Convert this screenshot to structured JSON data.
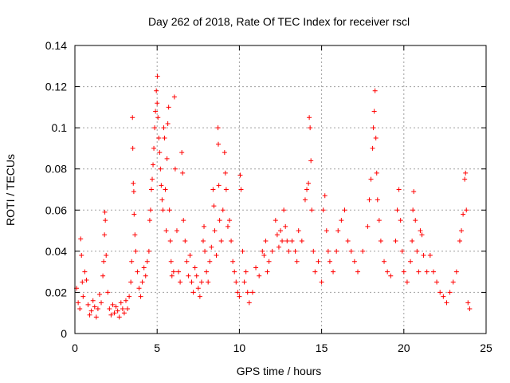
{
  "chart_data": {
    "type": "scatter",
    "title": "Day 262 of 2018, Rate Of TEC Index for receiver rscl",
    "xlabel": "GPS time / hours",
    "ylabel": "ROTI / TECUs",
    "xlim": [
      0,
      25
    ],
    "ylim": [
      0,
      0.14
    ],
    "xticks": [
      0,
      5,
      10,
      15,
      20,
      25
    ],
    "yticks": [
      0,
      0.02,
      0.04,
      0.06,
      0.08,
      0.1,
      0.12,
      0.14
    ],
    "xtick_labels": [
      "0",
      "5",
      "10",
      "15",
      "20",
      "25"
    ],
    "ytick_labels": [
      "0",
      "0.02",
      "0.04",
      "0.06",
      "0.08",
      "0.1",
      "0.12",
      "0.14"
    ],
    "grid": true,
    "marker": "+",
    "color": "#ff0000",
    "series": [
      {
        "name": "ROTI",
        "points": [
          [
            0.1,
            0.022
          ],
          [
            0.2,
            0.015
          ],
          [
            0.3,
            0.012
          ],
          [
            0.35,
            0.046
          ],
          [
            0.4,
            0.038
          ],
          [
            0.45,
            0.025
          ],
          [
            0.5,
            0.018
          ],
          [
            0.6,
            0.03
          ],
          [
            0.7,
            0.026
          ],
          [
            0.8,
            0.014
          ],
          [
            0.9,
            0.009
          ],
          [
            1.0,
            0.011
          ],
          [
            1.1,
            0.016
          ],
          [
            1.2,
            0.013
          ],
          [
            1.3,
            0.008
          ],
          [
            1.4,
            0.012
          ],
          [
            1.5,
            0.019
          ],
          [
            1.6,
            0.015
          ],
          [
            1.7,
            0.028
          ],
          [
            1.75,
            0.035
          ],
          [
            1.8,
            0.048
          ],
          [
            1.82,
            0.059
          ],
          [
            1.85,
            0.055
          ],
          [
            1.9,
            0.038
          ],
          [
            2.0,
            0.02
          ],
          [
            2.1,
            0.012
          ],
          [
            2.2,
            0.009
          ],
          [
            2.3,
            0.014
          ],
          [
            2.4,
            0.01
          ],
          [
            2.5,
            0.013
          ],
          [
            2.6,
            0.011
          ],
          [
            2.7,
            0.008
          ],
          [
            2.8,
            0.015
          ],
          [
            2.9,
            0.012
          ],
          [
            3.0,
            0.01
          ],
          [
            3.1,
            0.016
          ],
          [
            3.2,
            0.012
          ],
          [
            3.3,
            0.018
          ],
          [
            3.4,
            0.025
          ],
          [
            3.45,
            0.035
          ],
          [
            3.5,
            0.105
          ],
          [
            3.52,
            0.09
          ],
          [
            3.55,
            0.073
          ],
          [
            3.58,
            0.069
          ],
          [
            3.6,
            0.058
          ],
          [
            3.65,
            0.048
          ],
          [
            3.7,
            0.04
          ],
          [
            3.8,
            0.03
          ],
          [
            3.9,
            0.022
          ],
          [
            4.0,
            0.018
          ],
          [
            4.1,
            0.025
          ],
          [
            4.2,
            0.032
          ],
          [
            4.3,
            0.028
          ],
          [
            4.4,
            0.035
          ],
          [
            4.5,
            0.04
          ],
          [
            4.55,
            0.055
          ],
          [
            4.6,
            0.06
          ],
          [
            4.65,
            0.07
          ],
          [
            4.7,
            0.075
          ],
          [
            4.75,
            0.082
          ],
          [
            4.8,
            0.09
          ],
          [
            4.85,
            0.1
          ],
          [
            4.9,
            0.108
          ],
          [
            4.95,
            0.118
          ],
          [
            5.0,
            0.112
          ],
          [
            5.02,
            0.125
          ],
          [
            5.05,
            0.105
          ],
          [
            5.1,
            0.095
          ],
          [
            5.15,
            0.088
          ],
          [
            5.2,
            0.08
          ],
          [
            5.25,
            0.072
          ],
          [
            5.3,
            0.065
          ],
          [
            5.35,
            0.06
          ],
          [
            5.4,
            0.1
          ],
          [
            5.45,
            0.095
          ],
          [
            5.5,
            0.07
          ],
          [
            5.55,
            0.05
          ],
          [
            5.6,
            0.085
          ],
          [
            5.65,
            0.102
          ],
          [
            5.7,
            0.11
          ],
          [
            5.75,
            0.06
          ],
          [
            5.8,
            0.045
          ],
          [
            5.85,
            0.035
          ],
          [
            5.9,
            0.028
          ],
          [
            6.0,
            0.03
          ],
          [
            6.05,
            0.115
          ],
          [
            6.1,
            0.08
          ],
          [
            6.2,
            0.05
          ],
          [
            6.3,
            0.03
          ],
          [
            6.4,
            0.025
          ],
          [
            6.5,
            0.088
          ],
          [
            6.55,
            0.078
          ],
          [
            6.6,
            0.055
          ],
          [
            6.7,
            0.045
          ],
          [
            6.8,
            0.035
          ],
          [
            6.9,
            0.028
          ],
          [
            7.0,
            0.038
          ],
          [
            7.1,
            0.025
          ],
          [
            7.2,
            0.02
          ],
          [
            7.3,
            0.032
          ],
          [
            7.4,
            0.028
          ],
          [
            7.5,
            0.022
          ],
          [
            7.6,
            0.018
          ],
          [
            7.7,
            0.025
          ],
          [
            7.8,
            0.045
          ],
          [
            7.85,
            0.052
          ],
          [
            7.9,
            0.04
          ],
          [
            8.0,
            0.03
          ],
          [
            8.1,
            0.025
          ],
          [
            8.2,
            0.035
          ],
          [
            8.3,
            0.042
          ],
          [
            8.4,
            0.07
          ],
          [
            8.45,
            0.062
          ],
          [
            8.5,
            0.05
          ],
          [
            8.6,
            0.038
          ],
          [
            8.7,
            0.1
          ],
          [
            8.72,
            0.092
          ],
          [
            8.75,
            0.072
          ],
          [
            8.8,
            0.055
          ],
          [
            8.9,
            0.045
          ],
          [
            9.0,
            0.06
          ],
          [
            9.1,
            0.088
          ],
          [
            9.15,
            0.078
          ],
          [
            9.2,
            0.07
          ],
          [
            9.3,
            0.052
          ],
          [
            9.4,
            0.055
          ],
          [
            9.5,
            0.045
          ],
          [
            9.6,
            0.035
          ],
          [
            9.7,
            0.03
          ],
          [
            9.8,
            0.025
          ],
          [
            9.9,
            0.02
          ],
          [
            10.0,
            0.018
          ],
          [
            10.05,
            0.077
          ],
          [
            10.1,
            0.07
          ],
          [
            10.2,
            0.04
          ],
          [
            10.3,
            0.025
          ],
          [
            10.4,
            0.03
          ],
          [
            10.5,
            0.02
          ],
          [
            10.6,
            0.015
          ],
          [
            10.8,
            0.02
          ],
          [
            11.0,
            0.032
          ],
          [
            11.2,
            0.028
          ],
          [
            11.4,
            0.04
          ],
          [
            11.5,
            0.038
          ],
          [
            11.6,
            0.045
          ],
          [
            11.7,
            0.03
          ],
          [
            11.8,
            0.035
          ],
          [
            12.0,
            0.04
          ],
          [
            12.2,
            0.055
          ],
          [
            12.3,
            0.048
          ],
          [
            12.4,
            0.042
          ],
          [
            12.5,
            0.05
          ],
          [
            12.6,
            0.045
          ],
          [
            12.7,
            0.06
          ],
          [
            12.8,
            0.052
          ],
          [
            12.9,
            0.045
          ],
          [
            13.0,
            0.04
          ],
          [
            13.2,
            0.045
          ],
          [
            13.4,
            0.04
          ],
          [
            13.5,
            0.035
          ],
          [
            13.6,
            0.05
          ],
          [
            13.8,
            0.045
          ],
          [
            14.0,
            0.065
          ],
          [
            14.1,
            0.07
          ],
          [
            14.2,
            0.073
          ],
          [
            14.25,
            0.105
          ],
          [
            14.3,
            0.1
          ],
          [
            14.35,
            0.084
          ],
          [
            14.4,
            0.06
          ],
          [
            14.5,
            0.04
          ],
          [
            14.6,
            0.03
          ],
          [
            14.8,
            0.035
          ],
          [
            15.0,
            0.025
          ],
          [
            15.1,
            0.06
          ],
          [
            15.2,
            0.067
          ],
          [
            15.3,
            0.05
          ],
          [
            15.4,
            0.04
          ],
          [
            15.5,
            0.035
          ],
          [
            15.7,
            0.03
          ],
          [
            15.9,
            0.04
          ],
          [
            16.0,
            0.05
          ],
          [
            16.2,
            0.055
          ],
          [
            16.4,
            0.06
          ],
          [
            16.6,
            0.045
          ],
          [
            16.8,
            0.04
          ],
          [
            17.0,
            0.035
          ],
          [
            17.2,
            0.03
          ],
          [
            17.5,
            0.04
          ],
          [
            17.8,
            0.052
          ],
          [
            17.9,
            0.065
          ],
          [
            18.0,
            0.075
          ],
          [
            18.1,
            0.09
          ],
          [
            18.15,
            0.1
          ],
          [
            18.2,
            0.108
          ],
          [
            18.25,
            0.118
          ],
          [
            18.3,
            0.095
          ],
          [
            18.35,
            0.078
          ],
          [
            18.4,
            0.065
          ],
          [
            18.5,
            0.055
          ],
          [
            18.6,
            0.045
          ],
          [
            18.8,
            0.035
          ],
          [
            19.0,
            0.03
          ],
          [
            19.2,
            0.028
          ],
          [
            19.5,
            0.045
          ],
          [
            19.6,
            0.06
          ],
          [
            19.7,
            0.07
          ],
          [
            19.8,
            0.055
          ],
          [
            19.9,
            0.04
          ],
          [
            20.0,
            0.03
          ],
          [
            20.2,
            0.025
          ],
          [
            20.4,
            0.035
          ],
          [
            20.5,
            0.045
          ],
          [
            20.55,
            0.06
          ],
          [
            20.6,
            0.069
          ],
          [
            20.7,
            0.055
          ],
          [
            20.8,
            0.04
          ],
          [
            20.9,
            0.03
          ],
          [
            21.0,
            0.05
          ],
          [
            21.1,
            0.048
          ],
          [
            21.2,
            0.038
          ],
          [
            21.4,
            0.03
          ],
          [
            21.6,
            0.038
          ],
          [
            21.8,
            0.03
          ],
          [
            22.0,
            0.025
          ],
          [
            22.2,
            0.02
          ],
          [
            22.4,
            0.018
          ],
          [
            22.6,
            0.015
          ],
          [
            22.8,
            0.02
          ],
          [
            23.0,
            0.025
          ],
          [
            23.2,
            0.03
          ],
          [
            23.4,
            0.045
          ],
          [
            23.5,
            0.05
          ],
          [
            23.6,
            0.058
          ],
          [
            23.7,
            0.075
          ],
          [
            23.75,
            0.078
          ],
          [
            23.8,
            0.06
          ],
          [
            23.9,
            0.015
          ],
          [
            24.0,
            0.012
          ]
        ]
      }
    ]
  }
}
